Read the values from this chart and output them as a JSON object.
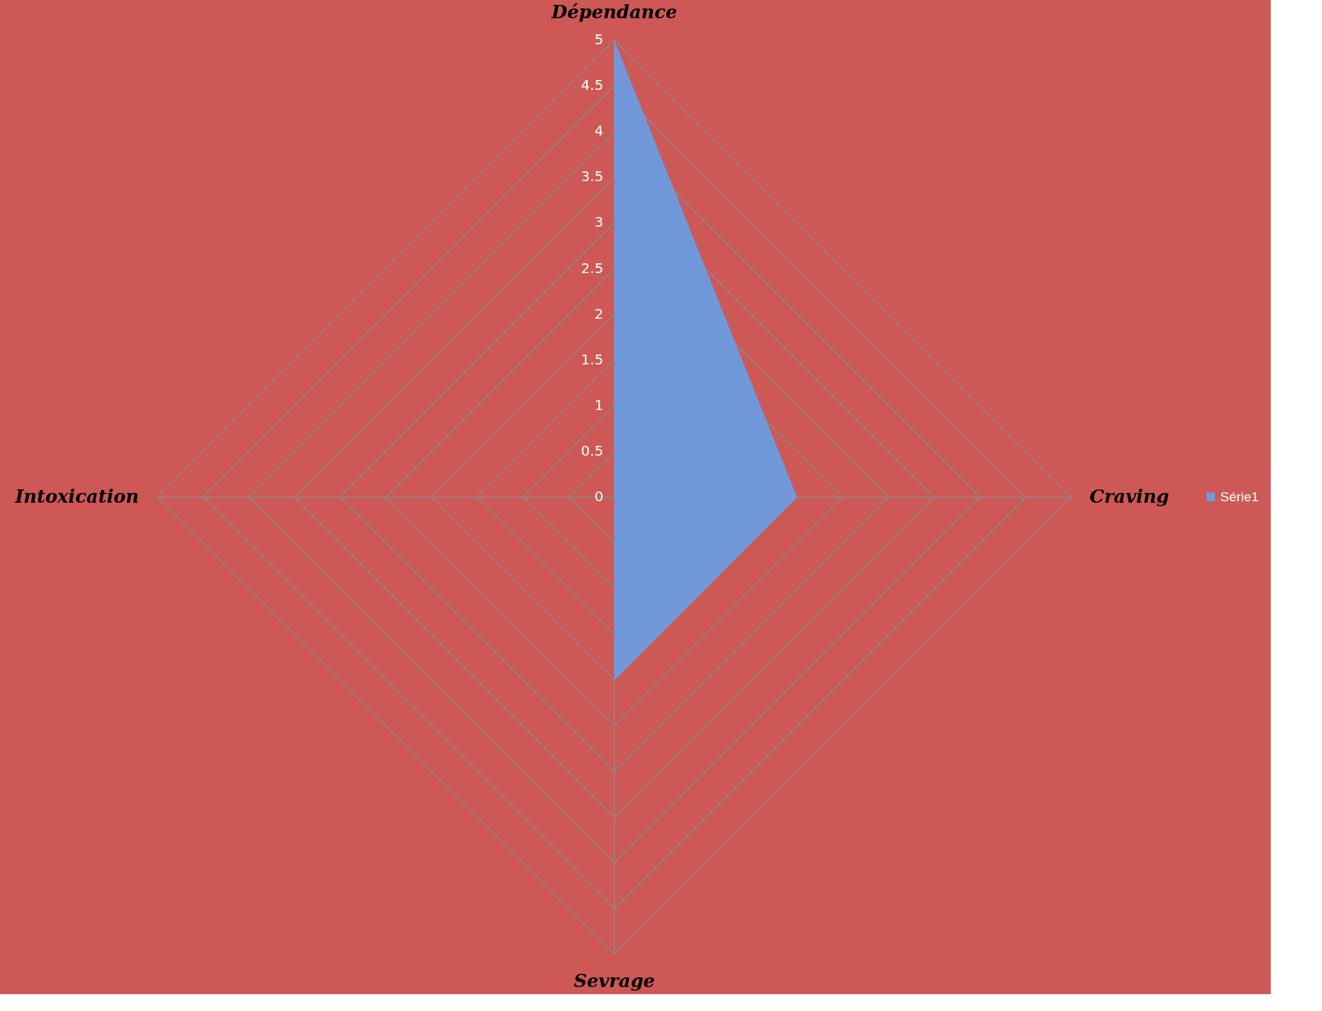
{
  "chart_data": {
    "type": "radar",
    "categories": [
      "Dépendance",
      "Craving",
      "Sevrage",
      "Intoxication"
    ],
    "series": [
      {
        "name": "Série1",
        "color": "#6a9be0",
        "values": [
          5,
          2,
          2,
          0
        ]
      }
    ],
    "ylim": [
      0,
      5
    ],
    "yticks": [
      {
        "value": 0,
        "label": "0"
      },
      0.5,
      1,
      1.5,
      2,
      2.5,
      3,
      3.5,
      4,
      4.5,
      5
    ],
    "grid": true,
    "legend": "right"
  }
}
